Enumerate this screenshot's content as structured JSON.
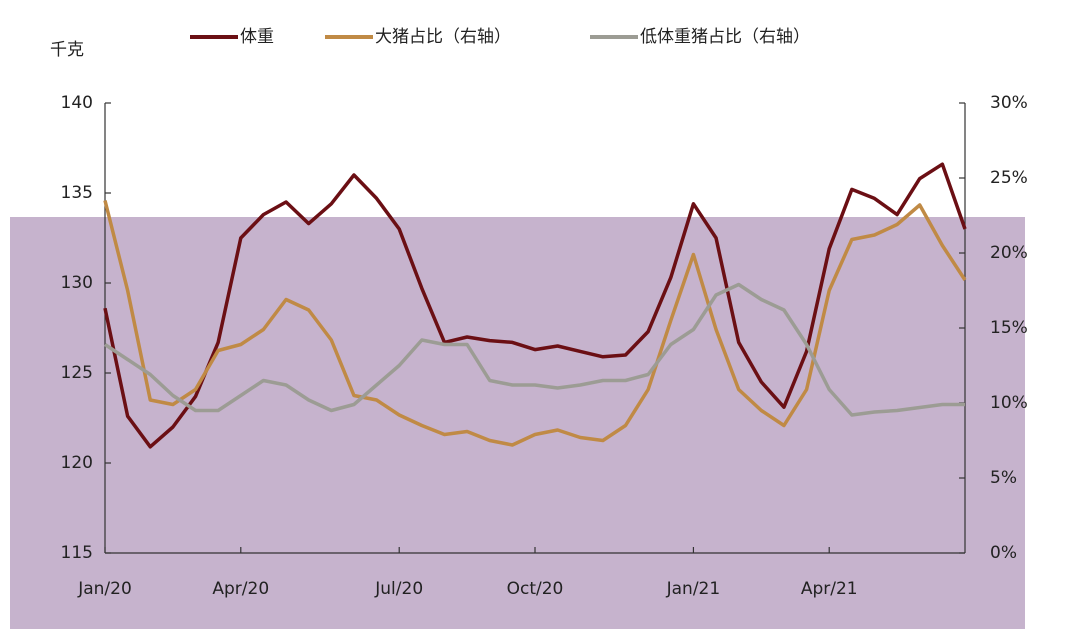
{
  "chart_data": {
    "type": "line",
    "y_label": "千克",
    "categories": [
      "Jan/20",
      null,
      null,
      null,
      null,
      null,
      "Apr/20",
      null,
      null,
      null,
      null,
      null,
      null,
      "Jul/20",
      null,
      null,
      null,
      null,
      null,
      "Oct/20",
      null,
      null,
      null,
      null,
      null,
      null,
      "Jan/21",
      null,
      null,
      null,
      null,
      null,
      "Apr/21",
      null,
      null,
      null,
      null,
      null,
      null
    ],
    "ylim": [
      115,
      140
    ],
    "yticks": [
      115,
      120,
      125,
      130,
      135,
      140
    ],
    "y2lim": [
      0,
      30
    ],
    "y2ticks": [
      {
        "value": 0,
        "label": "0%"
      },
      {
        "value": 5,
        "label": "5%"
      },
      {
        "value": 10,
        "label": "10%"
      },
      {
        "value": 15,
        "label": "15%"
      },
      {
        "value": 20,
        "label": "20%"
      },
      {
        "value": 25,
        "label": "25%"
      },
      {
        "value": 30,
        "label": "30%"
      }
    ],
    "series": [
      {
        "name": "体重",
        "color": "#6b0f14",
        "values": [
          128.6,
          122.6,
          120.9,
          122.0,
          123.7,
          126.7,
          132.5,
          133.8,
          134.5,
          133.3,
          134.4,
          136.0,
          134.7,
          133.0,
          129.7,
          126.7,
          127.0,
          126.8,
          126.7,
          126.3,
          126.5,
          126.2,
          125.9,
          126.0,
          127.3,
          130.3,
          134.4,
          132.5,
          126.7,
          124.5,
          123.1,
          126.2,
          131.9,
          135.2,
          134.7,
          133.8,
          135.8,
          136.6,
          133.0
        ]
      },
      {
        "name": "大猪占比（右轴）",
        "color": "#c08a45",
        "axis": "y2",
        "values": [
          23.5,
          17.5,
          10.2,
          9.9,
          10.9,
          13.5,
          13.9,
          14.9,
          16.9,
          16.2,
          14.2,
          10.5,
          10.2,
          9.2,
          8.5,
          7.9,
          8.1,
          7.5,
          7.2,
          7.9,
          8.2,
          7.7,
          7.5,
          8.5,
          10.9,
          15.5,
          19.9,
          14.9,
          10.9,
          9.5,
          8.5,
          10.9,
          17.5,
          20.9,
          21.2,
          21.9,
          23.2,
          20.5,
          18.2
        ]
      },
      {
        "name": "低体重猪占比（右轴）",
        "color": "#9c9c94",
        "axis": "y2",
        "values": [
          13.9,
          12.9,
          11.9,
          10.5,
          9.5,
          9.5,
          10.5,
          11.5,
          11.2,
          10.2,
          9.5,
          9.9,
          11.2,
          12.5,
          14.2,
          13.9,
          13.9,
          11.5,
          11.2,
          11.2,
          11.0,
          11.2,
          11.5,
          11.5,
          11.9,
          13.9,
          14.9,
          17.2,
          17.9,
          16.9,
          16.2,
          13.9,
          10.9,
          9.2,
          9.4,
          9.5,
          9.7,
          9.9,
          9.9
        ]
      }
    ]
  }
}
